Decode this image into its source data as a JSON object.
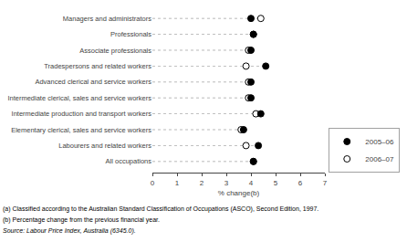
{
  "chart_data": {
    "type": "dot",
    "orientation": "horizontal",
    "categories": [
      "All occupations",
      "Labourers and related workers",
      "Elementary clerical, sales and service workers",
      "Intermediate production and transport workers",
      "Intermediate clerical, sales and service workers",
      "Advanced clerical and service workers",
      "Tradespersons and related workers",
      "Associate professionals",
      "Professionals",
      "Managers and administrators"
    ],
    "series": [
      {
        "name": "2005–06",
        "color": "#000000",
        "marker": "filled",
        "values": [
          4.1,
          4.3,
          3.7,
          4.4,
          4.0,
          4.0,
          4.6,
          4.0,
          4.1,
          4.0
        ]
      },
      {
        "name": "2006–07",
        "color": "#000000",
        "marker": "open",
        "values": [
          4.1,
          3.8,
          3.6,
          4.2,
          3.9,
          3.9,
          3.8,
          3.9,
          4.1,
          4.4
        ]
      }
    ],
    "xlabel": "% change(b)",
    "xlim": [
      0,
      7
    ],
    "xticks": [
      0,
      1,
      2,
      3,
      4,
      5,
      6,
      7
    ],
    "grid": false,
    "legend": "lower right",
    "annotations": [
      "(a) Classified according to the Australian Standard Classification of Occupations (ASCO), Second Edition, 1997.",
      "(b) Percentage change from the previous financial year.",
      "Source: Labour Price Index, Australia (6345.0)."
    ]
  }
}
